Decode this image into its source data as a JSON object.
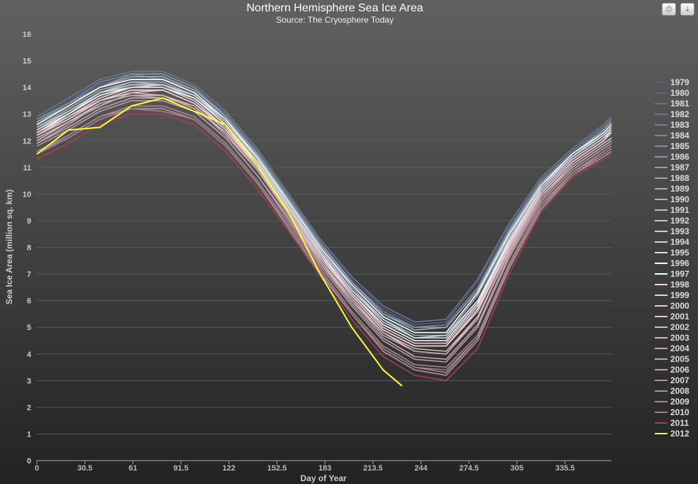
{
  "buttons": {
    "print": "print-icon",
    "export": "export-icon"
  },
  "chart_data": {
    "type": "line",
    "title": "Northern Hemisphere Sea Ice Area",
    "subtitle": "Source: The Cryosphere Today",
    "xlabel": "Day of Year",
    "ylabel": "Sea Ice Area (million sq. km)",
    "xlim": [
      0,
      365
    ],
    "ylim": [
      0,
      16
    ],
    "xticks": [
      "0",
      "30.5",
      "61",
      "91.5",
      "122",
      "152.5",
      "183",
      "213.5",
      "244",
      "274.5",
      "305",
      "335.5"
    ],
    "yticks": [
      "0",
      "1",
      "2",
      "3",
      "4",
      "5",
      "6",
      "7",
      "8",
      "9",
      "10",
      "11",
      "12",
      "13",
      "14",
      "15",
      "16"
    ],
    "grid": true,
    "legend_position": "right",
    "x": [
      0,
      20,
      40,
      60,
      80,
      100,
      120,
      140,
      160,
      180,
      200,
      220,
      240,
      260,
      280,
      300,
      320,
      340,
      360,
      365
    ],
    "series": [
      {
        "name": "1979",
        "color": "#52607e",
        "values": [
          12.8,
          13.5,
          14.2,
          14.5,
          14.5,
          14.0,
          13.0,
          11.6,
          9.9,
          8.2,
          6.8,
          5.7,
          5.1,
          5.2,
          6.7,
          8.8,
          10.5,
          11.6,
          12.5,
          12.8
        ]
      },
      {
        "name": "1980",
        "color": "#5a6884",
        "values": [
          12.7,
          13.4,
          14.1,
          14.4,
          14.4,
          13.9,
          13.0,
          11.6,
          9.9,
          8.2,
          6.7,
          5.6,
          5.0,
          5.1,
          6.5,
          8.7,
          10.5,
          11.6,
          12.5,
          12.8
        ]
      },
      {
        "name": "1981",
        "color": "#62708a",
        "values": [
          12.7,
          13.3,
          14.0,
          14.4,
          14.4,
          13.9,
          12.9,
          11.5,
          9.8,
          8.1,
          6.7,
          5.5,
          4.9,
          5.0,
          6.4,
          8.6,
          10.4,
          11.5,
          12.4,
          12.7
        ]
      },
      {
        "name": "1982",
        "color": "#6a7890",
        "values": [
          12.9,
          13.6,
          14.3,
          14.6,
          14.6,
          14.1,
          13.1,
          11.7,
          10.0,
          8.3,
          6.9,
          5.8,
          5.2,
          5.3,
          6.8,
          8.9,
          10.6,
          11.7,
          12.6,
          12.9
        ]
      },
      {
        "name": "1983",
        "color": "#728096",
        "values": [
          12.7,
          13.4,
          14.2,
          14.5,
          14.3,
          13.9,
          13.0,
          11.6,
          9.9,
          8.2,
          6.7,
          5.6,
          5.0,
          5.1,
          6.5,
          8.7,
          10.5,
          11.6,
          12.5,
          12.8
        ]
      },
      {
        "name": "1984",
        "color": "#7a889c",
        "values": [
          12.6,
          13.3,
          14.0,
          14.3,
          14.3,
          13.8,
          12.8,
          11.4,
          9.7,
          8.0,
          6.6,
          5.4,
          4.8,
          4.8,
          6.3,
          8.5,
          10.3,
          11.5,
          12.3,
          12.6
        ]
      },
      {
        "name": "1985",
        "color": "#8290a2",
        "values": [
          12.7,
          13.3,
          14.0,
          14.4,
          14.4,
          13.9,
          12.9,
          11.5,
          9.8,
          8.1,
          6.7,
          5.5,
          4.9,
          5.0,
          6.4,
          8.6,
          10.4,
          11.5,
          12.4,
          12.7
        ]
      },
      {
        "name": "1986",
        "color": "#8a98a8",
        "values": [
          12.8,
          13.4,
          14.0,
          14.5,
          14.5,
          14.0,
          12.9,
          11.5,
          9.8,
          8.1,
          6.7,
          5.5,
          5.0,
          5.0,
          6.4,
          8.6,
          10.4,
          11.5,
          12.4,
          12.7
        ]
      },
      {
        "name": "1987",
        "color": "#92a0ae",
        "values": [
          12.6,
          13.3,
          14.0,
          14.3,
          14.3,
          13.8,
          12.8,
          11.4,
          9.7,
          8.0,
          6.6,
          5.4,
          4.8,
          4.8,
          6.3,
          8.5,
          10.3,
          11.5,
          12.3,
          12.6
        ]
      },
      {
        "name": "1988",
        "color": "#9aa8b4",
        "values": [
          12.7,
          13.3,
          14.0,
          14.4,
          14.4,
          13.9,
          12.9,
          11.5,
          9.8,
          8.1,
          6.7,
          5.5,
          4.9,
          5.0,
          6.4,
          8.6,
          10.4,
          11.5,
          12.4,
          12.7
        ]
      },
      {
        "name": "1989",
        "color": "#a2b0ba",
        "values": [
          12.5,
          13.2,
          13.9,
          14.2,
          14.2,
          13.7,
          12.7,
          11.3,
          9.7,
          8.0,
          6.5,
          5.3,
          4.7,
          4.7,
          6.2,
          8.4,
          10.3,
          11.4,
          12.3,
          12.6
        ]
      },
      {
        "name": "1990",
        "color": "#aab8c2",
        "values": [
          12.4,
          13.1,
          13.8,
          14.1,
          14.1,
          13.7,
          12.7,
          11.3,
          9.6,
          7.9,
          6.4,
          5.2,
          4.6,
          4.6,
          6.0,
          8.3,
          10.2,
          11.4,
          12.2,
          12.5
        ]
      },
      {
        "name": "1991",
        "color": "#b2c0ca",
        "values": [
          12.5,
          13.1,
          13.8,
          14.2,
          14.1,
          13.6,
          12.7,
          11.3,
          9.6,
          7.9,
          6.4,
          5.2,
          4.6,
          4.6,
          6.0,
          8.3,
          10.2,
          11.4,
          12.2,
          12.5
        ]
      },
      {
        "name": "1992",
        "color": "#bac8d2",
        "values": [
          12.6,
          13.3,
          14.0,
          14.3,
          14.3,
          13.8,
          12.8,
          11.4,
          9.7,
          8.0,
          6.6,
          5.4,
          4.8,
          4.8,
          6.3,
          8.5,
          10.3,
          11.5,
          12.3,
          12.6
        ]
      },
      {
        "name": "1993",
        "color": "#c2d0da",
        "values": [
          12.4,
          13.1,
          13.8,
          14.1,
          14.1,
          13.7,
          12.7,
          11.3,
          9.6,
          7.9,
          6.4,
          5.2,
          4.6,
          4.6,
          6.0,
          8.3,
          10.2,
          11.4,
          12.2,
          12.5
        ]
      },
      {
        "name": "1994",
        "color": "#cadaea",
        "values": [
          12.4,
          13.0,
          13.8,
          14.0,
          14.1,
          13.7,
          12.8,
          11.3,
          9.6,
          7.9,
          6.4,
          5.3,
          4.6,
          4.7,
          6.0,
          8.3,
          10.2,
          11.4,
          12.2,
          12.5
        ]
      },
      {
        "name": "1995",
        "color": "#d2e0ec",
        "values": [
          12.2,
          12.8,
          13.5,
          13.9,
          13.9,
          13.4,
          12.4,
          11.0,
          9.4,
          7.7,
          6.2,
          4.9,
          4.3,
          4.3,
          5.6,
          8.0,
          10.0,
          11.2,
          12.0,
          12.3
        ]
      },
      {
        "name": "1996",
        "color": "#f4f8ff",
        "values": [
          12.6,
          13.3,
          14.0,
          14.3,
          14.3,
          13.8,
          12.8,
          11.4,
          9.7,
          8.0,
          6.6,
          5.4,
          4.8,
          4.8,
          6.3,
          8.5,
          10.3,
          11.5,
          12.3,
          12.6
        ]
      },
      {
        "name": "1997",
        "color": "#ffffff",
        "values": [
          12.3,
          13.0,
          13.7,
          14.0,
          14.0,
          13.6,
          12.6,
          11.2,
          9.5,
          7.8,
          6.3,
          5.1,
          4.5,
          4.5,
          5.9,
          8.2,
          10.1,
          11.3,
          12.1,
          12.4
        ]
      },
      {
        "name": "1998",
        "color": "#f0d4dc",
        "values": [
          12.3,
          12.9,
          13.6,
          14.0,
          14.0,
          13.5,
          12.5,
          11.1,
          9.4,
          7.7,
          6.3,
          5.0,
          4.4,
          4.4,
          5.8,
          8.1,
          10.1,
          11.3,
          12.1,
          12.3
        ]
      },
      {
        "name": "1999",
        "color": "#ecd0d8",
        "values": [
          12.2,
          12.8,
          13.5,
          13.9,
          13.9,
          13.4,
          12.4,
          11.0,
          9.4,
          7.7,
          6.2,
          4.9,
          4.3,
          4.3,
          5.6,
          8.0,
          10.0,
          11.2,
          12.0,
          12.3
        ]
      },
      {
        "name": "2000",
        "color": "#e8ccd4",
        "values": [
          12.2,
          12.9,
          13.5,
          13.8,
          13.9,
          13.4,
          12.5,
          11.0,
          9.3,
          7.6,
          6.2,
          4.9,
          4.3,
          4.3,
          5.7,
          8.0,
          10.0,
          11.2,
          12.0,
          12.3
        ]
      },
      {
        "name": "2001",
        "color": "#e4c8d0",
        "values": [
          12.3,
          12.9,
          13.6,
          14.0,
          14.0,
          13.5,
          12.5,
          11.1,
          9.4,
          7.7,
          6.3,
          5.0,
          4.4,
          4.4,
          5.8,
          8.1,
          10.1,
          11.3,
          12.1,
          12.3
        ]
      },
      {
        "name": "2002",
        "color": "#d8bcc4",
        "values": [
          12.0,
          12.7,
          13.4,
          13.7,
          13.7,
          13.3,
          12.3,
          10.9,
          9.2,
          7.5,
          6.0,
          4.8,
          4.1,
          4.0,
          5.4,
          7.9,
          9.9,
          11.1,
          11.9,
          12.1
        ]
      },
      {
        "name": "2003",
        "color": "#d4b8c0",
        "values": [
          12.1,
          12.7,
          13.3,
          13.8,
          13.7,
          13.2,
          12.3,
          10.9,
          9.3,
          7.5,
          6.1,
          4.8,
          4.2,
          4.1,
          5.4,
          7.8,
          9.9,
          11.1,
          11.9,
          12.1
        ]
      },
      {
        "name": "2004",
        "color": "#c8a8b2",
        "values": [
          11.9,
          12.6,
          13.4,
          13.7,
          13.6,
          13.3,
          12.2,
          10.9,
          9.2,
          7.4,
          6.0,
          4.7,
          4.1,
          4.0,
          5.3,
          7.9,
          9.9,
          11.0,
          11.8,
          12.0
        ]
      },
      {
        "name": "2005",
        "color": "#c4a4ae",
        "values": [
          11.9,
          12.5,
          13.2,
          13.6,
          13.6,
          13.1,
          12.1,
          10.7,
          9.1,
          7.4,
          5.9,
          4.6,
          3.9,
          3.8,
          5.1,
          7.7,
          9.8,
          11.0,
          11.8,
          12.0
        ]
      },
      {
        "name": "2006",
        "color": "#bc9ca6",
        "values": [
          11.8,
          12.4,
          13.1,
          13.5,
          13.5,
          13.1,
          12.1,
          10.7,
          9.0,
          7.3,
          5.8,
          4.5,
          3.8,
          3.7,
          5.0,
          7.6,
          9.7,
          10.9,
          11.7,
          11.9
        ]
      },
      {
        "name": "2007",
        "color": "#b4929c",
        "values": [
          11.5,
          12.1,
          12.8,
          13.2,
          13.2,
          12.8,
          11.8,
          10.4,
          8.7,
          7.0,
          5.5,
          4.1,
          3.4,
          3.2,
          4.5,
          7.2,
          9.4,
          10.7,
          11.4,
          11.6
        ]
      },
      {
        "name": "2008",
        "color": "#b08e98",
        "values": [
          11.5,
          12.2,
          12.9,
          13.2,
          13.2,
          12.8,
          11.8,
          10.4,
          8.8,
          7.1,
          5.5,
          4.2,
          3.5,
          3.3,
          4.6,
          7.3,
          9.5,
          10.8,
          11.5,
          11.7
        ]
      },
      {
        "name": "2009",
        "color": "#a88690",
        "values": [
          11.6,
          12.2,
          12.9,
          13.3,
          13.3,
          12.9,
          11.9,
          10.5,
          8.9,
          7.2,
          5.6,
          4.3,
          3.6,
          3.5,
          4.7,
          7.4,
          9.6,
          10.8,
          11.6,
          11.8
        ]
      },
      {
        "name": "2010",
        "color": "#a07e88",
        "values": [
          11.5,
          12.1,
          12.8,
          13.2,
          13.1,
          12.8,
          11.8,
          10.4,
          8.8,
          7.1,
          5.5,
          4.2,
          3.5,
          3.4,
          4.6,
          7.3,
          9.5,
          10.7,
          11.5,
          11.7
        ]
      },
      {
        "name": "2011",
        "color": "#a8404a",
        "values": [
          11.3,
          11.9,
          12.6,
          13.0,
          13.0,
          12.6,
          11.6,
          10.2,
          8.6,
          6.9,
          5.3,
          3.9,
          3.2,
          3.0,
          4.2,
          7.0,
          9.3,
          10.6,
          11.3,
          11.5
        ]
      },
      {
        "name": "2012",
        "color": "#ffff40",
        "x": [
          0,
          20,
          40,
          60,
          80,
          100,
          120,
          140,
          160,
          180,
          200,
          220,
          232
        ],
        "values": [
          11.5,
          12.4,
          12.5,
          13.3,
          13.6,
          13.1,
          12.6,
          11.1,
          9.3,
          7.0,
          5.0,
          3.4,
          2.8
        ]
      }
    ]
  }
}
